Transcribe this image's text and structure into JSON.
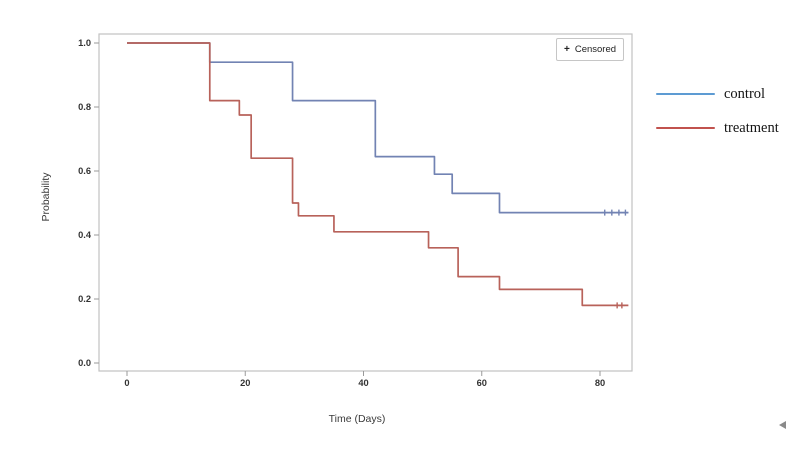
{
  "chart_data": {
    "type": "line",
    "subtype": "kaplan-meier-step",
    "title": "",
    "xlabel": "Time (Days)",
    "ylabel": "Probability",
    "xticks": [
      0,
      20,
      40,
      60,
      80
    ],
    "yticks": [
      0.0,
      0.2,
      0.4,
      0.6,
      0.8,
      1.0
    ],
    "xlim": [
      -4.7,
      85.4
    ],
    "ylim": [
      -0.025,
      1.028
    ],
    "grid": false,
    "legend_position": "right-outside",
    "frame_color": "#c2c2c2",
    "tick_color": "#9a9a9a",
    "series": [
      {
        "name": "control",
        "color": "#7283b3",
        "legend_color": "#5d9bd3",
        "steps": [
          [
            0,
            1.0
          ],
          [
            14,
            0.94
          ],
          [
            28,
            0.82
          ],
          [
            42,
            0.645
          ],
          [
            52,
            0.59
          ],
          [
            55,
            0.53
          ],
          [
            63,
            0.47
          ]
        ],
        "end_day": 84.8,
        "censored": [
          [
            80.8,
            0.47
          ],
          [
            82.0,
            0.47
          ],
          [
            83.2,
            0.47
          ],
          [
            84.3,
            0.47
          ]
        ]
      },
      {
        "name": "treatment",
        "color": "#b8625a",
        "legend_color": "#c1524e",
        "steps": [
          [
            0,
            1.0
          ],
          [
            14,
            0.82
          ],
          [
            19,
            0.775
          ],
          [
            21,
            0.64
          ],
          [
            28,
            0.5
          ],
          [
            29,
            0.46
          ],
          [
            35,
            0.41
          ],
          [
            51,
            0.36
          ],
          [
            56,
            0.27
          ],
          [
            63,
            0.23
          ],
          [
            77,
            0.18
          ]
        ],
        "end_day": 84.8,
        "censored": [
          [
            82.9,
            0.18
          ],
          [
            83.7,
            0.18
          ]
        ]
      }
    ]
  },
  "censored_box": {
    "symbol": "+",
    "label": "Censored"
  }
}
